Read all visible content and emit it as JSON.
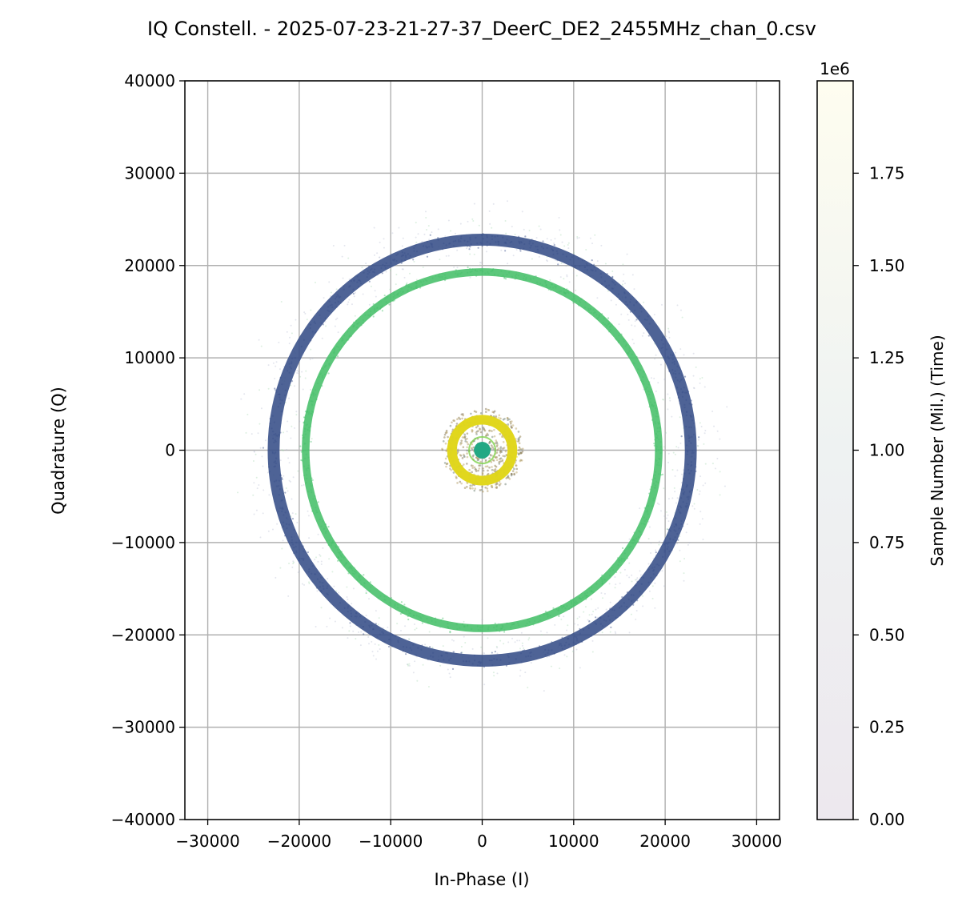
{
  "chart_data": {
    "type": "scatter",
    "title": "IQ Constell. - 2025-07-23-21-27-37_DeerC_DE2_2455MHz_chan_0.csv",
    "xlabel": "In-Phase (I)",
    "ylabel": "Quadrature (Q)",
    "xlim": [
      -32500,
      32500
    ],
    "ylim": [
      -40000,
      40000
    ],
    "x_ticks": [
      -30000,
      -20000,
      -10000,
      0,
      10000,
      20000,
      30000
    ],
    "x_tick_labels": [
      "−30000",
      "−20000",
      "−10000",
      "0",
      "10000",
      "20000",
      "30000"
    ],
    "y_ticks": [
      -40000,
      -30000,
      -20000,
      -10000,
      0,
      10000,
      20000,
      30000,
      40000
    ],
    "y_tick_labels": [
      "−40000",
      "−30000",
      "−20000",
      "−10000",
      "0",
      "10000",
      "20000",
      "30000",
      "40000"
    ],
    "grid": true,
    "clusters": [
      {
        "shape": "ring",
        "radius": 22800,
        "spread": 500,
        "color_value": 0.3,
        "color": "#3b528b"
      },
      {
        "shape": "ring",
        "radius": 19300,
        "spread": 320,
        "color_value": 0.72,
        "color": "#4ac16d"
      },
      {
        "shape": "ring",
        "radius": 3300,
        "spread": 380,
        "color_value": 0.98,
        "color": "#e0d71c"
      },
      {
        "shape": "disc",
        "radius": 4500,
        "color_value": 0.45,
        "color": "#9a8a5a"
      },
      {
        "shape": "dot",
        "radius": 900,
        "color_value": 0.6,
        "color": "#22a884"
      }
    ],
    "colorbar": {
      "label": "Sample Number (Mil.) (Time)",
      "offset_text": "1e6",
      "min": 0,
      "max": 2000000,
      "ticks": [
        0,
        250000,
        500000,
        750000,
        1000000,
        1250000,
        1500000,
        1750000
      ],
      "tick_labels": [
        "0.00",
        "0.25",
        "0.50",
        "0.75",
        "1.00",
        "1.25",
        "1.50",
        "1.75"
      ],
      "color_bottom": "#ede8ee",
      "color_top": "#fefdf0"
    }
  }
}
